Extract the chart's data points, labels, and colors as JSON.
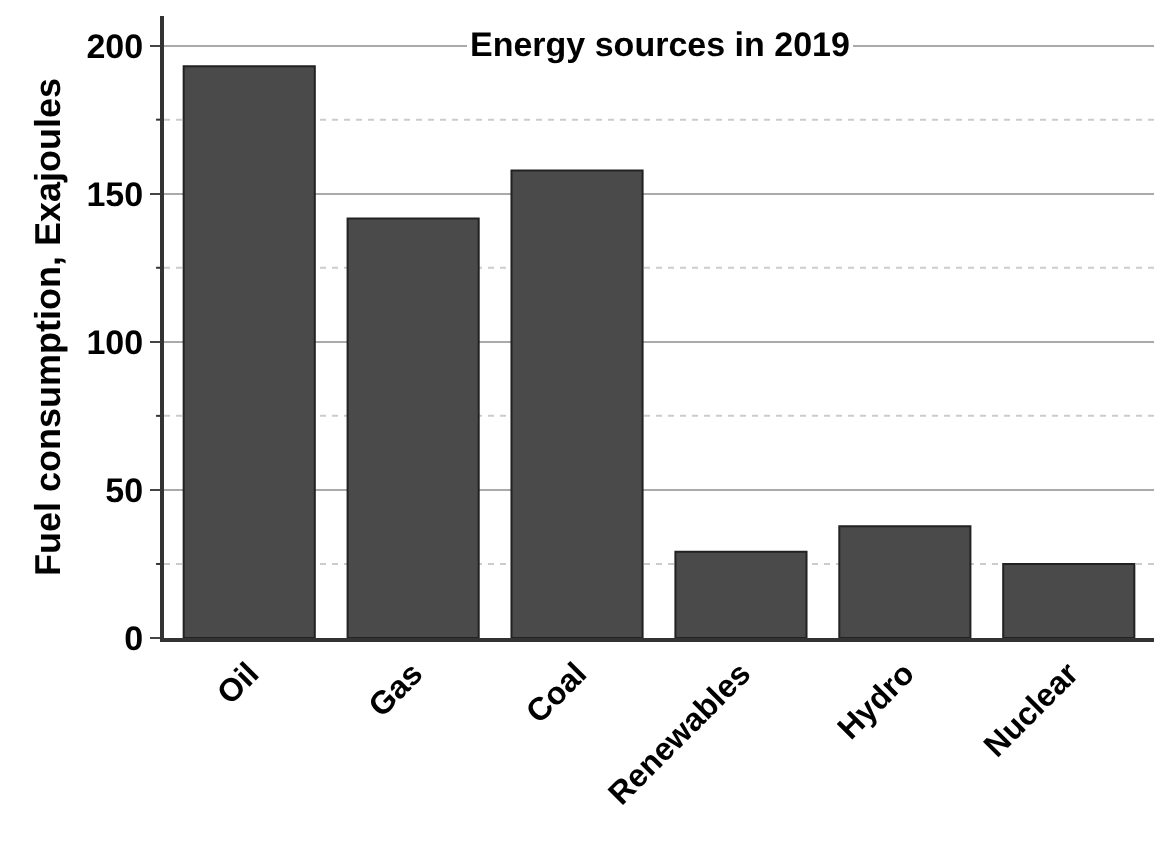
{
  "chart_data": {
    "type": "bar",
    "title": "Energy sources in 2019",
    "ylabel": "Fuel consumption, Exajoules",
    "categories": [
      "Oil",
      "Gas",
      "Coal",
      "Renewables",
      "Hydro",
      "Nuclear"
    ],
    "values": [
      193,
      141.6,
      157.8,
      29.1,
      37.7,
      25
    ],
    "color": "#4a4a4a",
    "ylim": [
      0,
      210
    ],
    "yticks": [
      0,
      {
        "value": 25,
        "label": null
      },
      50,
      {
        "value": 75,
        "label": null
      },
      100,
      {
        "value": 125,
        "label": null
      },
      150,
      {
        "value": 175,
        "label": null
      },
      200
    ],
    "grid": "y"
  }
}
